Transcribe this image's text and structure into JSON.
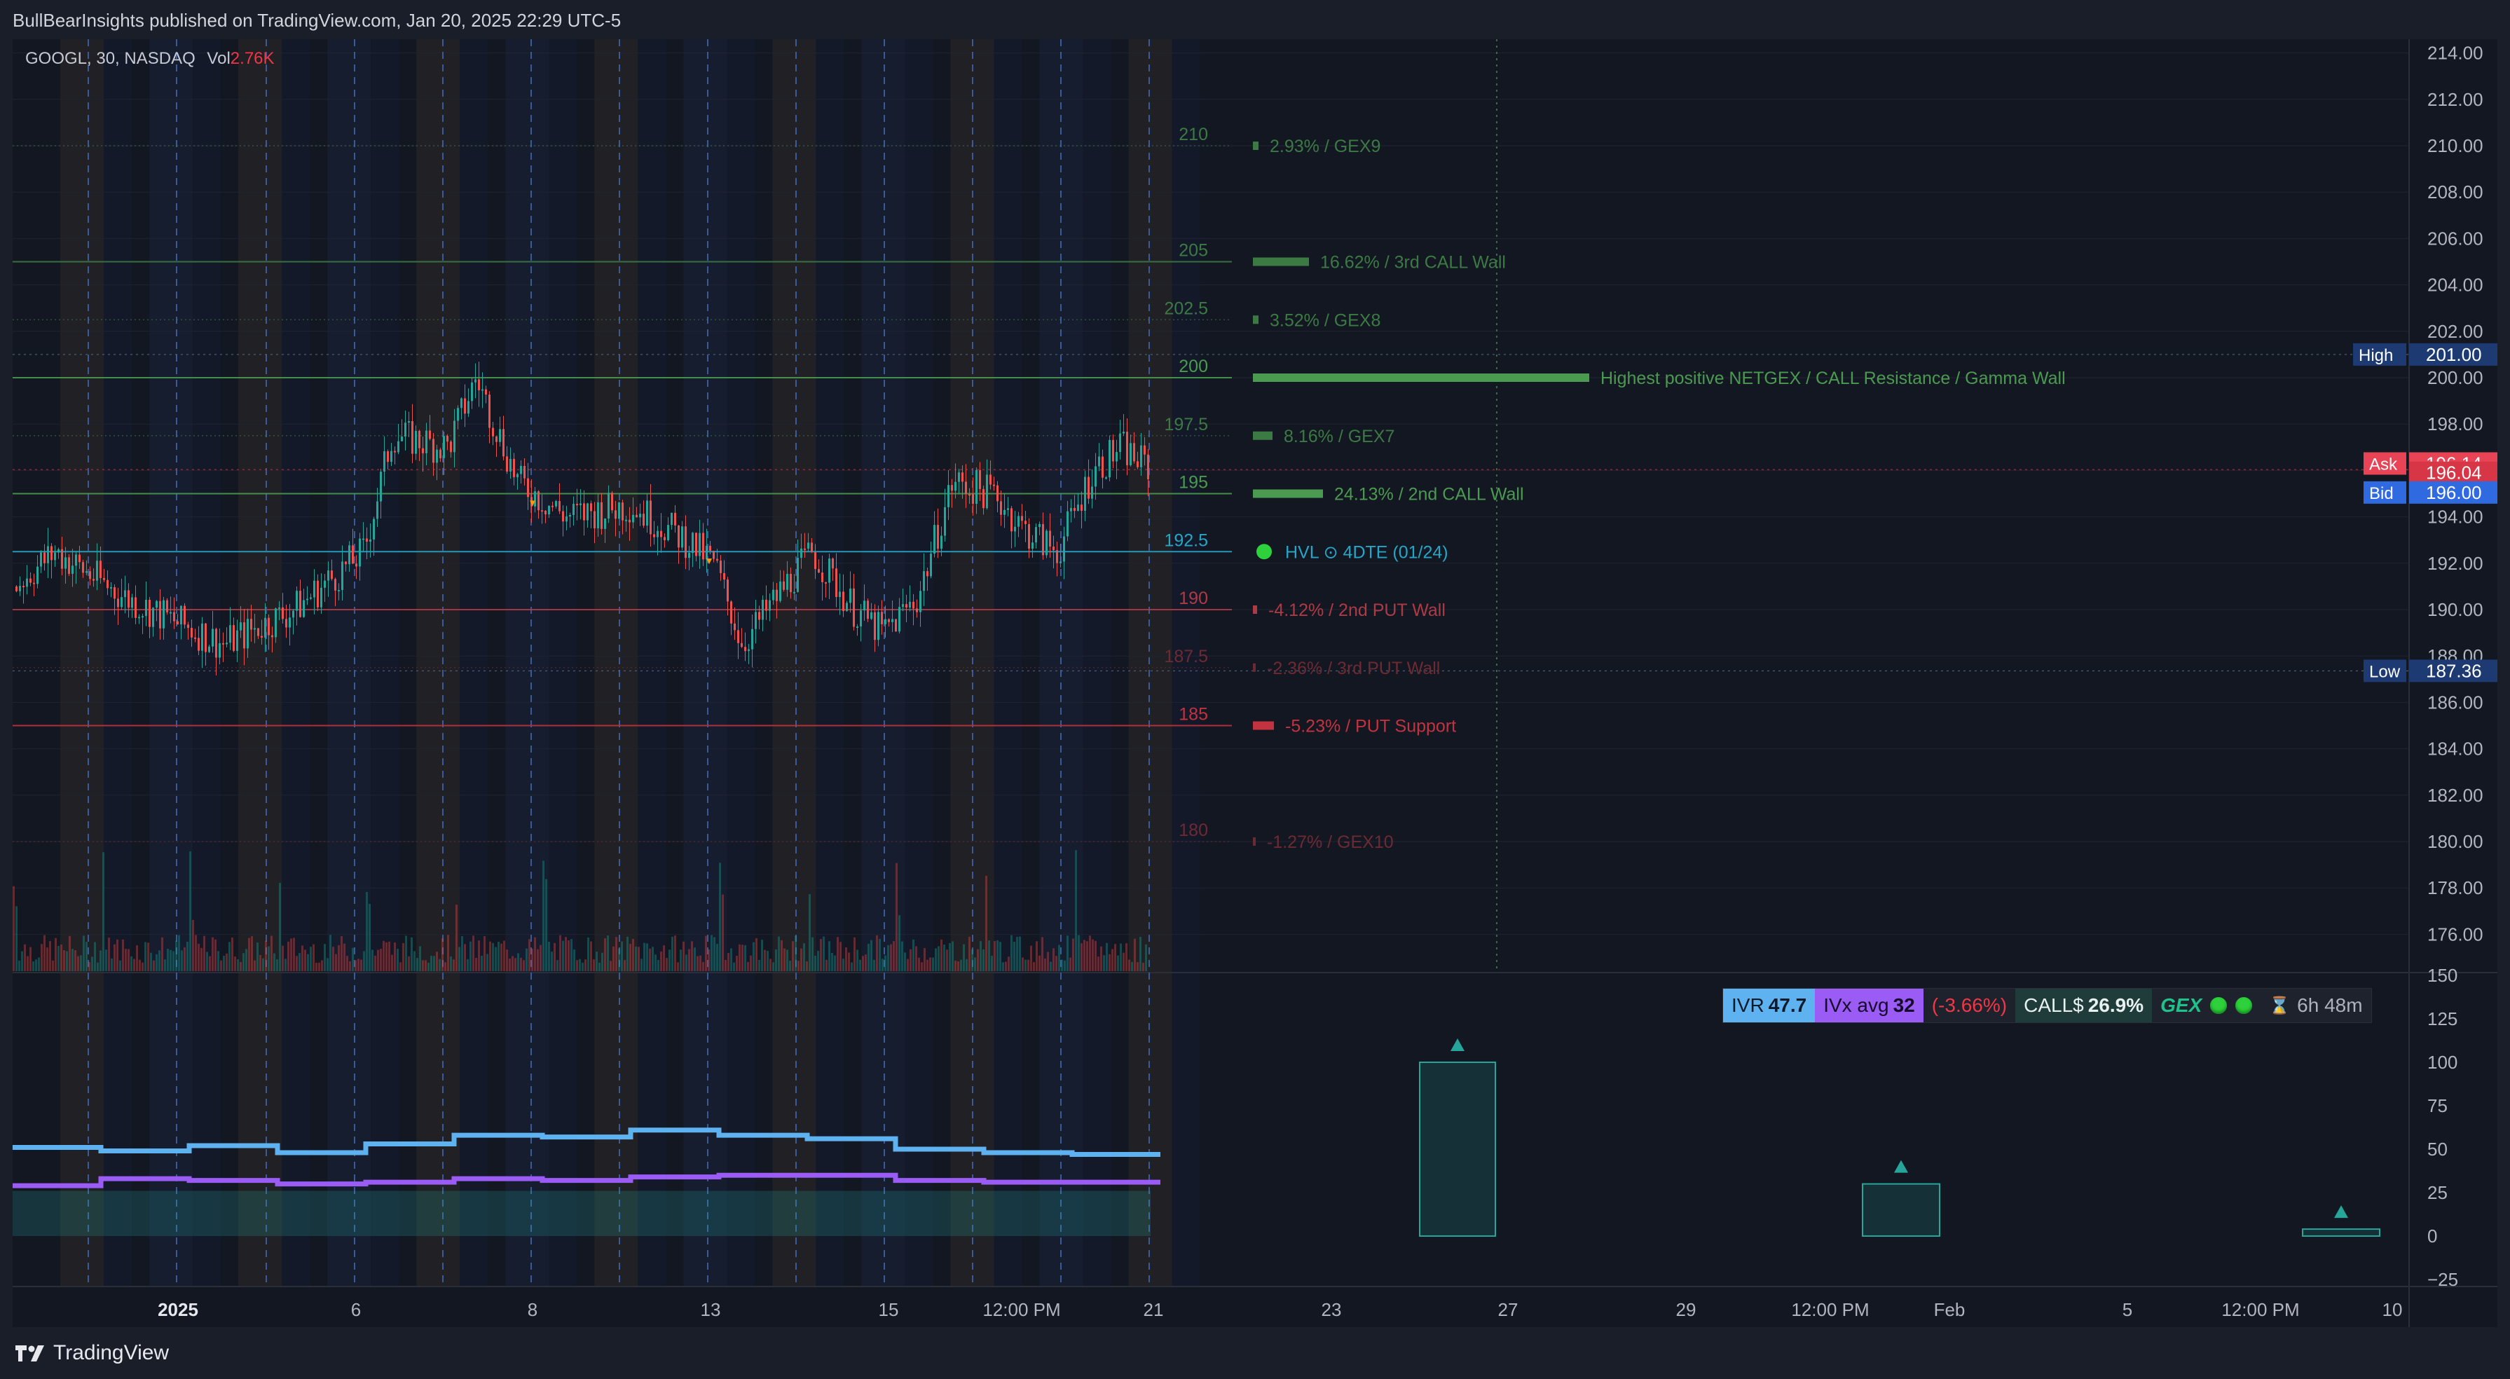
{
  "header": {
    "publisher_text": "BullBearInsights published on TradingView.com, Jan 20, 2025 22:29 UTC-5"
  },
  "symbol": {
    "ticker": "GOOGL, 30, NASDAQ",
    "vol_label": "Vol",
    "vol_value": "2.76K"
  },
  "price_axis": {
    "ticks": [
      "214.00",
      "212.00",
      "210.00",
      "208.00",
      "206.00",
      "204.00",
      "202.00",
      "200.00",
      "198.00",
      "196.00",
      "194.00",
      "192.00",
      "190.00",
      "188.00",
      "186.00",
      "184.00",
      "182.00",
      "180.00",
      "178.00",
      "176.00"
    ],
    "badges": {
      "high_label": "High",
      "high_value": "201.00",
      "ask_label": "Ask",
      "ask_value": "196.14",
      "last_value": "196.04",
      "bid_label": "Bid",
      "bid_value": "196.00",
      "low_label": "Low",
      "low_value": "187.36"
    }
  },
  "indicator_axis": {
    "ticks": [
      "150",
      "125",
      "100",
      "75",
      "50",
      "25",
      "0",
      "−25"
    ]
  },
  "time_axis": {
    "ticks": [
      "2025",
      "6",
      "8",
      "13",
      "15",
      "12:00 PM",
      "21",
      "23",
      "27",
      "29",
      "12:00 PM",
      "Feb",
      "5",
      "12:00 PM",
      "10"
    ]
  },
  "levels": [
    {
      "strike": "210",
      "label": "2.93% / GEX9",
      "color": "#3c7a44"
    },
    {
      "strike": "205",
      "label": "16.62% / 3rd CALL Wall",
      "color": "#3c7a44"
    },
    {
      "strike": "202.5",
      "label": "3.52% / GEX8",
      "color": "#3c7a44"
    },
    {
      "strike": "200",
      "label": "Highest positive NETGEX / CALL Resistance / Gamma Wall",
      "color": "#4a9a50"
    },
    {
      "strike": "197.5",
      "label": "8.16% / GEX7",
      "color": "#3c7a44"
    },
    {
      "strike": "195",
      "label": "24.13% / 2nd CALL Wall",
      "color": "#4a9a50"
    },
    {
      "strike": "192.5",
      "label": "HVL ⊙ 4DTE (01/24)",
      "color": "#26a6c7"
    },
    {
      "strike": "190",
      "label": "-4.12% / 2nd PUT Wall",
      "color": "#b03a44"
    },
    {
      "strike": "187.5",
      "label": "-2.36% / 3rd PUT Wall",
      "color": "#6e2a32"
    },
    {
      "strike": "185",
      "label": "-5.23% / PUT Support",
      "color": "#c2323f"
    },
    {
      "strike": "180",
      "label": "-1.27% / GEX10",
      "color": "#6e2a32"
    }
  ],
  "info_bar": {
    "ivr_label": "IVR",
    "ivr_value": "47.7",
    "ivx_label": "IVx avg",
    "ivx_value": "32",
    "change": "(-3.66%)",
    "call_label": "CALL$",
    "call_value": "26.9%",
    "gex_label": "GEX",
    "timer": "6h 48m"
  },
  "footer": {
    "brand": "TradingView"
  },
  "colors": {
    "background": "#131722",
    "up": "#26a69a",
    "down": "#ef5350",
    "ivr_line": "#5fb2f0",
    "ivx_line": "#9a5cf5"
  }
}
